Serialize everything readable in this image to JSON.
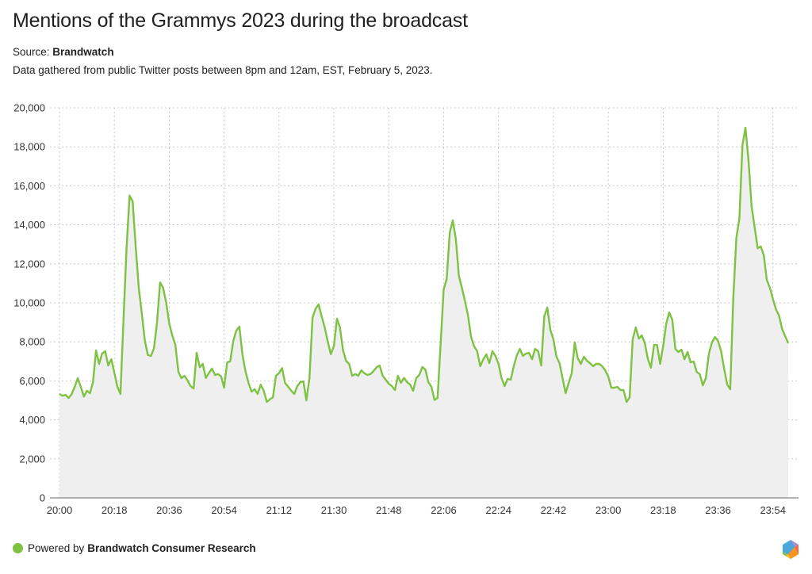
{
  "header": {
    "title": "Mentions of the Grammys 2023 during the broadcast",
    "source_label": "Source:",
    "source_name": "Brandwatch",
    "note": "Data gathered from public Twitter posts between 8pm and 12am, EST, February 5, 2023."
  },
  "footer": {
    "powered_label": "Powered by",
    "powered_name": "Brandwatch Consumer Research",
    "dot_icon": "green-circle-icon",
    "logo_icon": "brandwatch-hexagon-logo-icon"
  },
  "colors": {
    "line": "#7dc242",
    "area_fill": "#efefef",
    "grid": "#c8c8c8",
    "axis": "#999999"
  },
  "chart_data": {
    "type": "area",
    "title": "Mentions of the Grammys 2023 during the broadcast",
    "xlabel": "",
    "ylabel": "",
    "x_start": "20:00",
    "x_interval_minutes": 1,
    "x_ticks": [
      "20:00",
      "20:18",
      "20:36",
      "20:54",
      "21:12",
      "21:30",
      "21:48",
      "22:06",
      "22:24",
      "22:42",
      "23:00",
      "23:18",
      "23:36",
      "23:54"
    ],
    "y_ticks": [
      "0",
      "2,000",
      "4,000",
      "6,000",
      "8,000",
      "10,000",
      "12,000",
      "14,000",
      "16,000",
      "18,000",
      "20,000"
    ],
    "ylim": [
      0,
      20000
    ],
    "grid": true,
    "legend": "none",
    "series": [
      {
        "name": "Mentions",
        "values": [
          5330,
          5240,
          5280,
          5120,
          5320,
          5690,
          6140,
          5690,
          5200,
          5490,
          5370,
          5940,
          7560,
          6870,
          7400,
          7520,
          6790,
          7110,
          6420,
          5690,
          5330,
          9100,
          12800,
          15500,
          15200,
          12900,
          10770,
          9470,
          8050,
          7320,
          7280,
          7680,
          8980,
          11050,
          10770,
          10000,
          8940,
          8330,
          7850,
          6460,
          6140,
          6260,
          6020,
          5730,
          5610,
          7440,
          6700,
          6870,
          6150,
          6400,
          6630,
          6300,
          6350,
          6230,
          5650,
          6950,
          7000,
          8050,
          8580,
          8780,
          7360,
          6500,
          5890,
          5450,
          5570,
          5330,
          5810,
          5490,
          4920,
          5050,
          5160,
          6260,
          6390,
          6650,
          5890,
          5700,
          5500,
          5330,
          5730,
          5940,
          5970,
          5000,
          6150,
          9230,
          9700,
          9920,
          9300,
          8740,
          8000,
          7370,
          7780,
          9190,
          8740,
          7560,
          7030,
          6870,
          6260,
          6350,
          6260,
          6540,
          6390,
          6300,
          6350,
          6500,
          6700,
          6790,
          6260,
          6060,
          5850,
          5740,
          5530,
          6260,
          5900,
          6150,
          5940,
          5810,
          5490,
          6140,
          6300,
          6710,
          6580,
          5940,
          5690,
          5020,
          5120,
          7850,
          10690,
          11220,
          13600,
          14230,
          13260,
          11380,
          10770,
          10080,
          9350,
          8250,
          7770,
          7520,
          6750,
          7110,
          7360,
          6910,
          7520,
          7280,
          6870,
          6140,
          5730,
          6100,
          6060,
          6750,
          7320,
          7640,
          7280,
          7400,
          7440,
          7110,
          7640,
          7520,
          6790,
          9310,
          9760,
          8620,
          8130,
          7240,
          6910,
          6140,
          5370,
          5890,
          6390,
          7970,
          7150,
          6870,
          7240,
          7030,
          6910,
          6750,
          6870,
          6870,
          6750,
          6540,
          6220,
          5650,
          5650,
          5690,
          5530,
          5530,
          4920,
          5160,
          8130,
          8740,
          8170,
          8330,
          7930,
          7110,
          6670,
          7840,
          7840,
          6870,
          7780,
          8940,
          9510,
          9140,
          7640,
          7480,
          7600,
          7110,
          7480,
          6950,
          6990,
          6460,
          6350,
          5770,
          6140,
          7400,
          7970,
          8250,
          8050,
          7520,
          6630,
          5810,
          5570,
          10200,
          13330,
          14310,
          18090,
          18980,
          17280,
          14960,
          13860,
          12800,
          12890,
          12440,
          11180,
          10770,
          10200,
          9670,
          9350,
          8660,
          8300,
          7930
        ]
      }
    ]
  }
}
